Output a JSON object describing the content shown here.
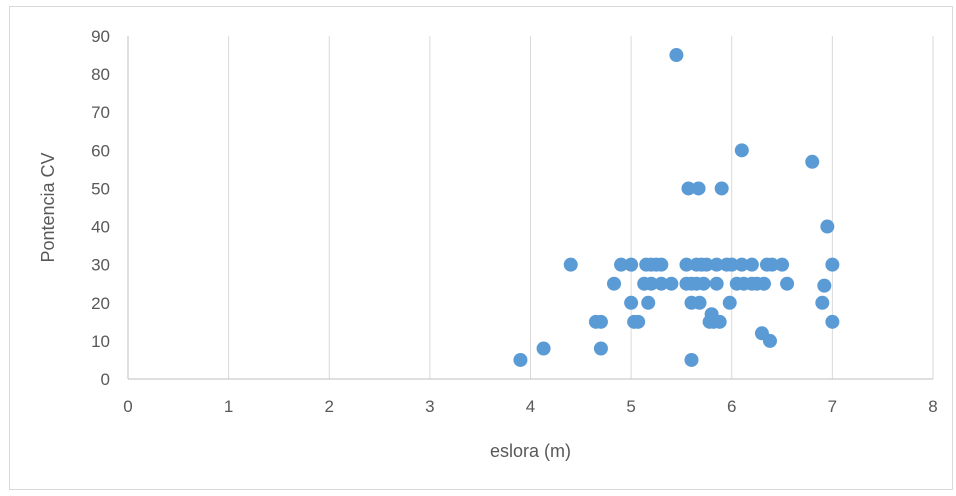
{
  "chart_data": {
    "type": "scatter",
    "title": "",
    "xlabel": "eslora (m)",
    "ylabel": "Pontencia CV",
    "xlim": [
      0,
      8
    ],
    "ylim": [
      0,
      90
    ],
    "xticks": [
      "0",
      "1",
      "2",
      "3",
      "4",
      "5",
      "6",
      "7",
      "8"
    ],
    "yticks": [
      "0",
      "10",
      "20",
      "30",
      "40",
      "50",
      "60",
      "70",
      "80",
      "90"
    ],
    "grid": "vertical",
    "legend": "none",
    "marker_color": "#5b9bd5",
    "points": [
      [
        3.9,
        5
      ],
      [
        4.13,
        8
      ],
      [
        4.4,
        30
      ],
      [
        4.65,
        15
      ],
      [
        4.7,
        15
      ],
      [
        4.7,
        8
      ],
      [
        4.83,
        25
      ],
      [
        4.9,
        30
      ],
      [
        5.0,
        30
      ],
      [
        5.0,
        20
      ],
      [
        5.03,
        15
      ],
      [
        5.07,
        15
      ],
      [
        5.13,
        25
      ],
      [
        5.15,
        30
      ],
      [
        5.17,
        20
      ],
      [
        5.2,
        25
      ],
      [
        5.2,
        30
      ],
      [
        5.25,
        30
      ],
      [
        5.3,
        25
      ],
      [
        5.3,
        30
      ],
      [
        5.45,
        85
      ],
      [
        5.4,
        25
      ],
      [
        5.55,
        30
      ],
      [
        5.55,
        25
      ],
      [
        5.57,
        50
      ],
      [
        5.6,
        20
      ],
      [
        5.6,
        25
      ],
      [
        5.6,
        5
      ],
      [
        5.65,
        30
      ],
      [
        5.65,
        25
      ],
      [
        5.67,
        50
      ],
      [
        5.68,
        20
      ],
      [
        5.7,
        30
      ],
      [
        5.72,
        25
      ],
      [
        5.75,
        30
      ],
      [
        5.78,
        15
      ],
      [
        5.8,
        17
      ],
      [
        5.82,
        15
      ],
      [
        5.85,
        25
      ],
      [
        5.85,
        30
      ],
      [
        5.88,
        15
      ],
      [
        5.9,
        50
      ],
      [
        5.95,
        30
      ],
      [
        5.98,
        20
      ],
      [
        6.0,
        30
      ],
      [
        6.05,
        25
      ],
      [
        6.1,
        60
      ],
      [
        6.1,
        30
      ],
      [
        6.12,
        25
      ],
      [
        6.2,
        30
      ],
      [
        6.2,
        25
      ],
      [
        6.25,
        25
      ],
      [
        6.3,
        12
      ],
      [
        6.32,
        25
      ],
      [
        6.35,
        30
      ],
      [
        6.38,
        10
      ],
      [
        6.4,
        30
      ],
      [
        6.5,
        30
      ],
      [
        6.55,
        25
      ],
      [
        6.8,
        57
      ],
      [
        6.9,
        20
      ],
      [
        6.92,
        24.5
      ],
      [
        6.95,
        40
      ],
      [
        7.0,
        30
      ],
      [
        7.0,
        15
      ]
    ]
  }
}
